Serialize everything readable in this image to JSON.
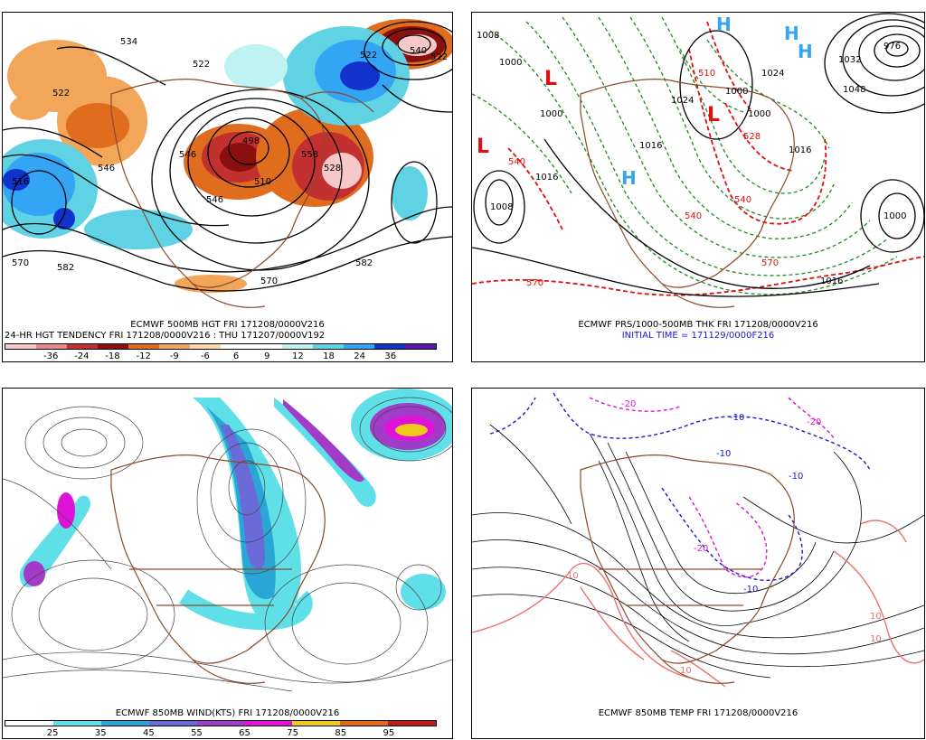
{
  "panels": {
    "hgt500": {
      "caption_line1": "ECMWF 500MB HGT FRI 171208/0000V216",
      "caption_line2": "24-HR HGT TENDENCY FRI 171208/0000V216 : THU 171207/0000V192",
      "contour_labels": [
        "534",
        "522",
        "522",
        "540",
        "522",
        "522",
        "546",
        "558",
        "498",
        "510",
        "528",
        "516",
        "546",
        "546",
        "570",
        "582",
        "570",
        "582"
      ],
      "colorbar": {
        "colors": [
          "#f7c8c8",
          "#e88a8a",
          "#c23030",
          "#8a0f0f",
          "#e06c1e",
          "#f2a65a",
          "#fdd9a8",
          "#ffffff",
          "#ffffff",
          "#bff3f3",
          "#5fd3e3",
          "#34a4f4",
          "#1232cc",
          "#5a1ab0"
        ],
        "labels": [
          "-36",
          "-24",
          "-18",
          "-12",
          "-9",
          "-6",
          "6",
          "9",
          "12",
          "18",
          "24",
          "36"
        ]
      }
    },
    "prs_thk": {
      "caption_line1": "ECMWF PRS/1000-500MB THK FRI 171208/0000V216",
      "caption_line2": "INITIAL TIME = 171129/0000F216",
      "pressure_labels": [
        "1008",
        "1000",
        "1000",
        "1016",
        "1016",
        "1024",
        "1000",
        "1000",
        "1016",
        "1024",
        "1032",
        "976",
        "1048",
        "1000",
        "1016",
        "1008"
      ],
      "thickness_labels": [
        "540",
        "540",
        "570",
        "570",
        "540",
        "528",
        "510"
      ],
      "low_markers": [
        "L",
        "L",
        "L"
      ],
      "high_markers": [
        "H",
        "H",
        "H",
        "H"
      ]
    },
    "wind850": {
      "caption_line1": "ECMWF 850MB WIND(KTS) FRI 171208/0000V216",
      "colorbar": {
        "colors": [
          "#ffffff",
          "#5fe0e8",
          "#2aa6d6",
          "#6a6ad8",
          "#a23cc8",
          "#e012d8",
          "#f0c81a",
          "#e06a1a",
          "#c01818"
        ],
        "labels": [
          "25",
          "35",
          "45",
          "55",
          "65",
          "75",
          "85",
          "95"
        ]
      }
    },
    "temp850": {
      "caption_line1": "ECMWF 850MB TEMP FRI 171208/0000V216",
      "contour_labels": [
        "-20",
        "-20",
        "-10",
        "-10",
        "-10",
        "-20",
        "10",
        "10",
        "10",
        "10",
        "-10"
      ]
    }
  }
}
